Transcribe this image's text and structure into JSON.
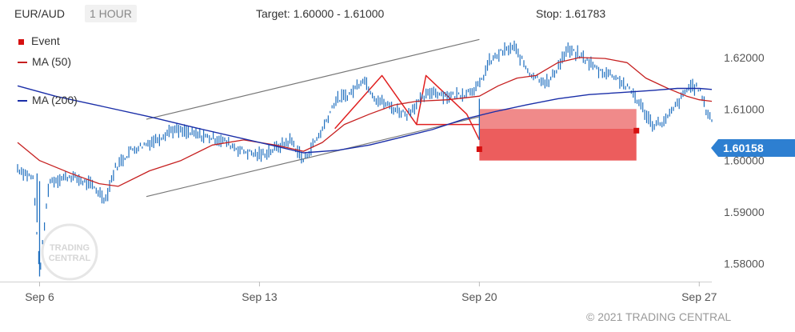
{
  "header": {
    "symbol": "EUR/AUD",
    "timeframe": "1 HOUR",
    "target_text": "Target: 1.60000 - 1.61000",
    "stop_text": "Stop: 1.61783"
  },
  "legend": {
    "event_label": "Event",
    "ma50_label": "MA (50)",
    "ma200_label": "MA (200)"
  },
  "copyright": "© 2021 TRADING CENTRAL",
  "watermark": {
    "line1": "TRADING",
    "line2": "CENTRAL"
  },
  "current_price": "1.60158",
  "colors": {
    "candles": "#1f6fbf",
    "ma50": "#c62020",
    "ma200": "#1a2ea8",
    "pattern": "#e02020",
    "channel": "#777777",
    "event": "#d61010",
    "target_zone_light": "#f08a8a",
    "target_zone_dark": "#ec5d5d",
    "current_price_tag": "#2d7fd1",
    "axis_text": "#555555"
  },
  "chart_data": {
    "type": "line",
    "title": "EUR/AUD",
    "xlabel": "",
    "ylabel": "",
    "x_ticks": [
      {
        "label": "Sep 6",
        "t": 0.0
      },
      {
        "label": "Sep 13",
        "t": 7.0
      },
      {
        "label": "Sep 20",
        "t": 14.0
      },
      {
        "label": "Sep 27",
        "t": 21.0
      }
    ],
    "y_ticks": [
      "1.58000",
      "1.59000",
      "1.60000",
      "1.61000",
      "1.62000"
    ],
    "ylim": [
      1.5765,
      1.6265
    ],
    "xlim": [
      -0.7,
      21.4
    ],
    "series": [
      {
        "name": "EUR/AUD",
        "points": [
          [
            -0.7,
            1.5985
          ],
          [
            -0.2,
            1.5965
          ],
          [
            0.0,
            1.578
          ],
          [
            0.3,
            1.596
          ],
          [
            1.0,
            1.597
          ],
          [
            1.7,
            1.595
          ],
          [
            2.1,
            1.5925
          ],
          [
            2.4,
            1.5985
          ],
          [
            2.9,
            1.602
          ],
          [
            3.7,
            1.604
          ],
          [
            4.2,
            1.606
          ],
          [
            5.0,
            1.605
          ],
          [
            5.8,
            1.604
          ],
          [
            6.4,
            1.602
          ],
          [
            7.0,
            1.601
          ],
          [
            7.4,
            1.602
          ],
          [
            8.0,
            1.604
          ],
          [
            8.4,
            1.6
          ],
          [
            9.0,
            1.606
          ],
          [
            9.4,
            1.6115
          ],
          [
            9.9,
            1.613
          ],
          [
            10.3,
            1.616
          ],
          [
            10.7,
            1.612
          ],
          [
            11.3,
            1.61
          ],
          [
            11.7,
            1.609
          ],
          [
            12.0,
            1.611
          ],
          [
            12.5,
            1.6135
          ],
          [
            13.0,
            1.6125
          ],
          [
            13.5,
            1.613
          ],
          [
            14.0,
            1.6145
          ],
          [
            14.3,
            1.619
          ],
          [
            14.7,
            1.621
          ],
          [
            15.1,
            1.622
          ],
          [
            15.6,
            1.617
          ],
          [
            16.2,
            1.615
          ],
          [
            16.8,
            1.6215
          ],
          [
            17.3,
            1.62
          ],
          [
            17.8,
            1.6175
          ],
          [
            18.3,
            1.6165
          ],
          [
            18.9,
            1.613
          ],
          [
            19.5,
            1.607
          ],
          [
            19.9,
            1.6075
          ],
          [
            20.3,
            1.611
          ],
          [
            20.7,
            1.6145
          ],
          [
            21.0,
            1.614
          ],
          [
            21.2,
            1.61
          ],
          [
            21.4,
            1.608
          ]
        ]
      },
      {
        "name": "MA (50)",
        "points": [
          [
            -0.7,
            1.6035
          ],
          [
            0.0,
            1.6
          ],
          [
            1.0,
            1.5975
          ],
          [
            1.9,
            1.5955
          ],
          [
            2.5,
            1.595
          ],
          [
            3.5,
            1.598
          ],
          [
            4.5,
            1.6
          ],
          [
            5.5,
            1.603
          ],
          [
            6.5,
            1.604
          ],
          [
            7.5,
            1.603
          ],
          [
            8.4,
            1.6018
          ],
          [
            9.0,
            1.6035
          ],
          [
            9.7,
            1.607
          ],
          [
            10.5,
            1.609
          ],
          [
            11.3,
            1.6108
          ],
          [
            12.0,
            1.6115
          ],
          [
            13.0,
            1.6118
          ],
          [
            14.0,
            1.6125
          ],
          [
            14.6,
            1.6145
          ],
          [
            15.2,
            1.616
          ],
          [
            15.8,
            1.6165
          ],
          [
            16.5,
            1.619
          ],
          [
            17.2,
            1.62
          ],
          [
            18.0,
            1.6198
          ],
          [
            18.7,
            1.619
          ],
          [
            19.3,
            1.616
          ],
          [
            20.0,
            1.614
          ],
          [
            20.6,
            1.6125
          ],
          [
            21.0,
            1.6118
          ],
          [
            21.4,
            1.6115
          ]
        ]
      },
      {
        "name": "MA (200)",
        "points": [
          [
            -0.7,
            1.6145
          ],
          [
            0.5,
            1.6125
          ],
          [
            2.0,
            1.6105
          ],
          [
            3.5,
            1.6085
          ],
          [
            5.0,
            1.6063
          ],
          [
            6.5,
            1.6042
          ],
          [
            7.5,
            1.6028
          ],
          [
            8.4,
            1.6015
          ],
          [
            9.5,
            1.602
          ],
          [
            10.5,
            1.603
          ],
          [
            11.5,
            1.6045
          ],
          [
            12.5,
            1.606
          ],
          [
            13.5,
            1.608
          ],
          [
            14.5,
            1.6095
          ],
          [
            15.5,
            1.6108
          ],
          [
            16.5,
            1.612
          ],
          [
            17.5,
            1.6128
          ],
          [
            18.5,
            1.6132
          ],
          [
            19.5,
            1.6136
          ],
          [
            20.3,
            1.614
          ],
          [
            21.0,
            1.614
          ],
          [
            21.4,
            1.6138
          ]
        ]
      }
    ],
    "pattern_line": [
      [
        9.4,
        1.6062
      ],
      [
        10.9,
        1.6165
      ],
      [
        12.0,
        1.607
      ],
      [
        12.3,
        1.6165
      ],
      [
        13.6,
        1.609
      ],
      [
        14.0,
        1.604
      ]
    ],
    "pattern_neckline": [
      [
        12.0,
        1.607
      ],
      [
        14.0,
        1.607
      ]
    ],
    "channel_upper": [
      [
        3.4,
        1.608
      ],
      [
        14.0,
        1.6235
      ]
    ],
    "channel_lower": [
      [
        3.4,
        1.593
      ],
      [
        14.0,
        1.6085
      ]
    ],
    "target_zone": {
      "t_start": 14.0,
      "t_end": 19.0,
      "y_low": 1.6,
      "y_high": 1.61,
      "y_split": 1.6062
    },
    "events": [
      [
        14.0,
        1.6022
      ],
      [
        19.0,
        1.6058
      ]
    ],
    "legend_position": "top-left"
  }
}
